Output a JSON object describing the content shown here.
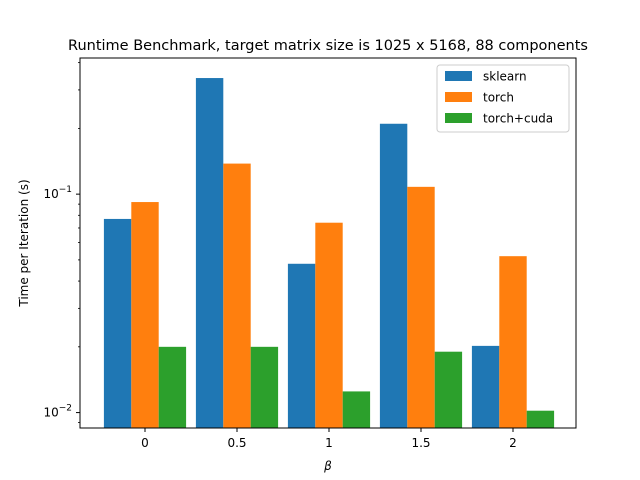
{
  "chart_data": {
    "type": "bar",
    "title": "Runtime Benchmark, target matrix size is 1025 x 5168, 88 components",
    "xlabel": "β",
    "ylabel": "Time per Iteration (s)",
    "yscale": "log",
    "ylim": [
      0.0085,
      0.42
    ],
    "categories": [
      "0",
      "0.5",
      "1",
      "1.5",
      "2"
    ],
    "series": [
      {
        "name": "sklearn",
        "color": "#1f77b4",
        "values": [
          0.077,
          0.34,
          0.048,
          0.21,
          0.0202
        ]
      },
      {
        "name": "torch",
        "color": "#ff7f0e",
        "values": [
          0.092,
          0.138,
          0.074,
          0.108,
          0.052
        ]
      },
      {
        "name": "torch+cuda",
        "color": "#2ca02c",
        "values": [
          0.02,
          0.02,
          0.0125,
          0.019,
          0.0102
        ]
      }
    ],
    "yticks": [
      {
        "value": 0.01,
        "base": "10",
        "exp": "−2"
      },
      {
        "value": 0.1,
        "base": "10",
        "exp": "−1"
      }
    ],
    "legend": "top-right",
    "grid": false
  }
}
